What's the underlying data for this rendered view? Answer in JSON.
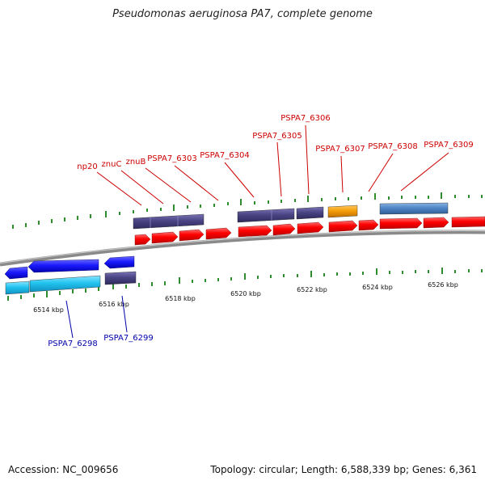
{
  "title": "Pseudomonas aeruginosa PA7, complete genome",
  "footer": {
    "accession": "Accession: NC_009656",
    "topology": "Topology: circular; Length: 6,588,339 bp; Genes: 6,361"
  },
  "colors": {
    "red_gene": "#ff0000",
    "blue_gene": "#1a1aff",
    "cyan_gene": "#22c4f0",
    "slate_gene": "#4a4484",
    "orange_gene": "#f59e0b",
    "steel_gene": "#4f86c6",
    "forward_label": "#cc0000",
    "reverse_label": "#0000aa",
    "tick": "#2e8b2e"
  },
  "kbp_ticks": [
    "6514 kbp",
    "6516 kbp",
    "6518 kbp",
    "6520 kbp",
    "6522 kbp",
    "6524 kbp",
    "6526 kbp"
  ],
  "forward_labels": [
    "np20",
    "znuC",
    "znuB",
    "PSPA7_6303",
    "PSPA7_6304",
    "PSPA7_6305",
    "PSPA7_6306",
    "PSPA7_6307",
    "PSPA7_6308",
    "PSPA7_6309"
  ],
  "reverse_labels": [
    "PSPA7_6298",
    "PSPA7_6299"
  ]
}
